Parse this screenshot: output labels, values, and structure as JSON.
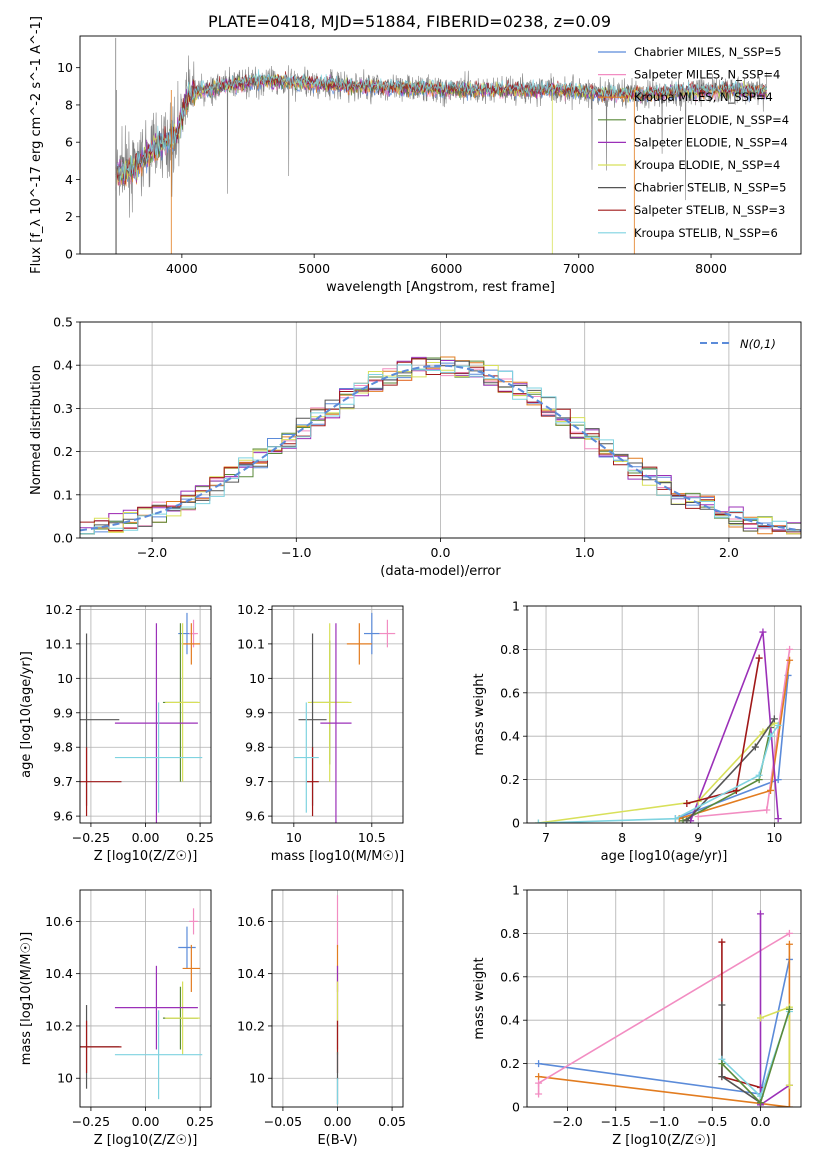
{
  "title": "PLATE=0418, MJD=51884, FIBERID=0238, z=0.09",
  "chart_data": [
    {
      "id": "spectrum",
      "type": "line",
      "xlabel": "wavelength [Angstrom, rest frame]",
      "ylabel": "Flux [f_λ 10^-17 erg cm^-2 s^-1 A^-1]",
      "xlim": [
        3230,
        8680
      ],
      "ylim": [
        0,
        11.7
      ],
      "xticks": [
        4000,
        5000,
        6000,
        7000,
        8000
      ],
      "yticks": [
        0,
        2,
        4,
        6,
        8,
        10
      ],
      "grid": false,
      "legend_position": "top-right",
      "data_series": {
        "name": "data",
        "color": "#808080"
      },
      "legend": [
        {
          "label": "Chabrier MILES, N_SSP=5",
          "color": "#5b8bd9"
        },
        {
          "label": "Salpeter MILES, N_SSP=4",
          "color": "#f28dc2"
        },
        {
          "label": "Kroupa MILES, N_SSP=4",
          "color": "#e27c20"
        },
        {
          "label": "Chabrier ELODIE, N_SSP=4",
          "color": "#5a8a3a"
        },
        {
          "label": "Salpeter ELODIE, N_SSP=4",
          "color": "#9b30b8"
        },
        {
          "label": "Kroupa ELODIE, N_SSP=4",
          "color": "#d8e05a"
        },
        {
          "label": "Chabrier STELIB, N_SSP=5",
          "color": "#555555"
        },
        {
          "label": "Salpeter STELIB, N_SSP=3",
          "color": "#a01818"
        },
        {
          "label": "Kroupa STELIB, N_SSP=6",
          "color": "#7fd3e0"
        }
      ],
      "continuum": {
        "x": [
          3500,
          3650,
          3800,
          3950,
          4050,
          4300,
          4600,
          4900,
          5300,
          5700,
          6100,
          6500,
          6900,
          7200,
          7500,
          7800,
          8100,
          8400
        ],
        "y": [
          4.3,
          4.6,
          5.8,
          6.3,
          8.6,
          9.0,
          9.3,
          9.2,
          9.0,
          8.9,
          8.8,
          8.8,
          8.8,
          8.6,
          8.6,
          8.7,
          8.8,
          8.7
        ]
      }
    },
    {
      "id": "residuals",
      "type": "histogram",
      "xlabel": "(data-model)/error",
      "ylabel": "Normed distribution",
      "xlim": [
        -2.5,
        2.5
      ],
      "ylim": [
        0,
        0.5
      ],
      "xticks": [
        -2,
        -1,
        0,
        1,
        2
      ],
      "yticks": [
        0.0,
        0.1,
        0.2,
        0.3,
        0.4,
        0.5
      ],
      "grid": true,
      "legend_position": "top-right",
      "legend": [
        {
          "label": "N(0,1)",
          "color": "#5b8bd9",
          "style": "dashed"
        }
      ]
    },
    {
      "id": "age-vs-z",
      "type": "scatter",
      "xlabel": "Z [log10(Z/Z☉)]",
      "ylabel": "age [log10(age/yr)]",
      "xlim": [
        -0.3,
        0.3
      ],
      "ylim": [
        9.58,
        10.21
      ],
      "xticks": [
        -0.25,
        0.0,
        0.25
      ],
      "xticklabels": [
        "−0.25",
        "0.00",
        "0.25"
      ],
      "yticks": [
        9.6,
        9.7,
        9.8,
        9.9,
        10.0,
        10.1,
        10.2
      ],
      "grid": true,
      "points": [
        {
          "color": "#5b8bd9",
          "x": 0.19,
          "xerr": 0.04,
          "y": 10.13,
          "yerr": 0.06
        },
        {
          "color": "#f28dc2",
          "x": 0.22,
          "xerr": 0.02,
          "y": 10.13,
          "yerr": 0.04
        },
        {
          "color": "#e27c20",
          "x": 0.21,
          "xerr": 0.04,
          "y": 10.1,
          "yerr": 0.06
        },
        {
          "color": "#5a8a3a",
          "x": 0.16,
          "xerr": 0.08,
          "y": 9.93,
          "yerr": 0.23
        },
        {
          "color": "#d8e05a",
          "x": 0.17,
          "xerr": 0.08,
          "y": 9.93,
          "yerr": 0.23
        },
        {
          "color": "#9b30b8",
          "x": 0.05,
          "xerr": 0.19,
          "y": 9.87,
          "yerr": 0.29
        },
        {
          "color": "#555555",
          "x": -0.27,
          "xerr": 0.15,
          "y": 9.88,
          "yerr": 0.25
        },
        {
          "color": "#a01818",
          "x": -0.27,
          "xerr": 0.16,
          "y": 9.7,
          "yerr": 0.1
        },
        {
          "color": "#7fd3e0",
          "x": 0.06,
          "xerr": 0.2,
          "y": 9.77,
          "yerr": 0.16
        }
      ]
    },
    {
      "id": "age-vs-mass",
      "type": "scatter",
      "xlabel": "mass [log10(M/M☉)]",
      "ylabel": "",
      "xlim": [
        9.86,
        10.7
      ],
      "ylim": [
        9.58,
        10.21
      ],
      "xticks": [
        10.0,
        10.5
      ],
      "yticks": [
        9.6,
        9.7,
        9.8,
        9.9,
        10.0,
        10.1,
        10.2
      ],
      "grid": true,
      "points": [
        {
          "color": "#5b8bd9",
          "x": 10.5,
          "xerr": 0.05,
          "y": 10.13,
          "yerr": 0.06
        },
        {
          "color": "#f28dc2",
          "x": 10.6,
          "xerr": 0.05,
          "y": 10.13,
          "yerr": 0.04
        },
        {
          "color": "#e27c20",
          "x": 10.42,
          "xerr": 0.08,
          "y": 10.1,
          "yerr": 0.06
        },
        {
          "color": "#5a8a3a",
          "x": 10.23,
          "xerr": 0.12,
          "y": 9.93,
          "yerr": 0.18
        },
        {
          "color": "#d8e05a",
          "x": 10.23,
          "xerr": 0.14,
          "y": 9.93,
          "yerr": 0.23
        },
        {
          "color": "#9b30b8",
          "x": 10.27,
          "xerr": 0.1,
          "y": 9.87,
          "yerr": 0.29
        },
        {
          "color": "#555555",
          "x": 10.12,
          "xerr": 0.09,
          "y": 9.88,
          "yerr": 0.25
        },
        {
          "color": "#a01818",
          "x": 10.12,
          "xerr": 0.04,
          "y": 9.7,
          "yerr": 0.1
        },
        {
          "color": "#7fd3e0",
          "x": 10.08,
          "xerr": 0.08,
          "y": 9.77,
          "yerr": 0.16
        }
      ]
    },
    {
      "id": "weight-vs-age",
      "type": "line",
      "xlabel": "age [log10(age/yr)]",
      "ylabel": "mass weight",
      "xlim": [
        6.75,
        10.35
      ],
      "ylim": [
        0,
        1.0
      ],
      "xticks": [
        7,
        8,
        9,
        10
      ],
      "yticks": [
        0.0,
        0.2,
        0.4,
        0.6,
        0.8,
        1.0
      ],
      "grid": true,
      "series": [
        {
          "color": "#5b8bd9",
          "points": [
            [
              8.7,
              0.02
            ],
            [
              10.05,
              0.2
            ],
            [
              10.18,
              0.68
            ]
          ]
        },
        {
          "color": "#f28dc2",
          "points": [
            [
              9.0,
              0.03
            ],
            [
              9.9,
              0.06
            ],
            [
              10.2,
              0.8
            ]
          ]
        },
        {
          "color": "#e27c20",
          "points": [
            [
              8.75,
              0.02
            ],
            [
              9.95,
              0.15
            ],
            [
              10.2,
              0.75
            ]
          ]
        },
        {
          "color": "#5a8a3a",
          "points": [
            [
              8.8,
              0.01
            ],
            [
              9.8,
              0.2
            ],
            [
              9.95,
              0.44
            ]
          ]
        },
        {
          "color": "#9b30b8",
          "points": [
            [
              8.9,
              0.01
            ],
            [
              9.85,
              0.88
            ],
            [
              10.05,
              0.02
            ]
          ]
        },
        {
          "color": "#d8e05a",
          "points": [
            [
              6.9,
              0.0
            ],
            [
              9.0,
              0.1
            ],
            [
              9.85,
              0.42
            ],
            [
              10.0,
              0.46
            ]
          ]
        },
        {
          "color": "#555555",
          "points": [
            [
              8.85,
              0.01
            ],
            [
              9.75,
              0.35
            ],
            [
              10.0,
              0.48
            ]
          ]
        },
        {
          "color": "#a01818",
          "points": [
            [
              8.85,
              0.09
            ],
            [
              9.5,
              0.15
            ],
            [
              9.8,
              0.76
            ]
          ]
        },
        {
          "color": "#7fd3e0",
          "points": [
            [
              6.9,
              0.0
            ],
            [
              8.7,
              0.02
            ],
            [
              9.8,
              0.22
            ],
            [
              9.95,
              0.4
            ],
            [
              10.05,
              0.45
            ]
          ]
        }
      ]
    },
    {
      "id": "mass-vs-z",
      "type": "scatter",
      "xlabel": "Z [log10(Z/Z☉)]",
      "ylabel": "mass [log10(M/M☉)]",
      "xlim": [
        -0.3,
        0.3
      ],
      "ylim": [
        9.89,
        10.72
      ],
      "xticks": [
        -0.25,
        0.0,
        0.25
      ],
      "xticklabels": [
        "−0.25",
        "0.00",
        "0.25"
      ],
      "yticks": [
        10.0,
        10.2,
        10.4,
        10.6
      ],
      "grid": true,
      "points": [
        {
          "color": "#5b8bd9",
          "x": 0.19,
          "xerr": 0.04,
          "y": 10.5,
          "yerr": 0.08
        },
        {
          "color": "#f28dc2",
          "x": 0.22,
          "xerr": 0.02,
          "y": 10.6,
          "yerr": 0.05
        },
        {
          "color": "#e27c20",
          "x": 0.21,
          "xerr": 0.04,
          "y": 10.42,
          "yerr": 0.09
        },
        {
          "color": "#5a8a3a",
          "x": 0.16,
          "xerr": 0.08,
          "y": 10.23,
          "yerr": 0.12
        },
        {
          "color": "#d8e05a",
          "x": 0.17,
          "xerr": 0.08,
          "y": 10.23,
          "yerr": 0.14
        },
        {
          "color": "#9b30b8",
          "x": 0.05,
          "xerr": 0.19,
          "y": 10.27,
          "yerr": 0.16
        },
        {
          "color": "#555555",
          "x": -0.27,
          "xerr": 0.15,
          "y": 10.12,
          "yerr": 0.16
        },
        {
          "color": "#a01818",
          "x": -0.27,
          "xerr": 0.16,
          "y": 10.12,
          "yerr": 0.1
        },
        {
          "color": "#7fd3e0",
          "x": 0.06,
          "xerr": 0.2,
          "y": 10.09,
          "yerr": 0.17
        }
      ]
    },
    {
      "id": "mass-vs-ebv",
      "type": "scatter",
      "xlabel": "E(B-V)",
      "ylabel": "",
      "xlim": [
        -0.06,
        0.06
      ],
      "ylim": [
        9.89,
        10.72
      ],
      "xticks": [
        -0.05,
        0.0,
        0.05
      ],
      "xticklabels": [
        "−0.05",
        "0.00",
        "0.05"
      ],
      "yticks": [
        10.0,
        10.2,
        10.4,
        10.6
      ],
      "grid": true,
      "points": [
        {
          "color": "#f28dc2",
          "x": 0.0,
          "xerr": 0,
          "y": 10.6,
          "yerr": 0.1
        },
        {
          "color": "#e27c20",
          "x": 0.0,
          "xerr": 0,
          "y": 10.42,
          "yerr": 0.09
        },
        {
          "color": "#9b30b8",
          "x": 0.0,
          "xerr": 0,
          "y": 10.27,
          "yerr": 0.16
        },
        {
          "color": "#d8e05a",
          "x": 0.0,
          "xerr": 0,
          "y": 10.23,
          "yerr": 0.14
        },
        {
          "color": "#a01818",
          "x": 0.0,
          "xerr": 0,
          "y": 10.12,
          "yerr": 0.1
        },
        {
          "color": "#555555",
          "x": 0.0,
          "xerr": 0,
          "y": 10.0,
          "yerr": 0.1
        },
        {
          "color": "#7fd3e0",
          "x": 0.0,
          "xerr": 0,
          "y": 9.95,
          "yerr": 0.05
        }
      ]
    },
    {
      "id": "weight-vs-z",
      "type": "line",
      "xlabel": "Z [log10(Z/Z☉)]",
      "ylabel": "mass weight",
      "xlim": [
        -2.42,
        0.42
      ],
      "ylim": [
        0,
        1.0
      ],
      "xticks": [
        -2.0,
        -1.5,
        -1.0,
        -0.5,
        0.0
      ],
      "xticklabels": [
        "−2.0",
        "−1.5",
        "−1.0",
        "−0.5",
        "0.0"
      ],
      "yticks": [
        0.0,
        0.2,
        0.4,
        0.6,
        0.8,
        1.0
      ],
      "grid": true,
      "series": [
        {
          "color": "#5b8bd9",
          "points": [
            [
              -2.3,
              0.2
            ],
            [
              0.0,
              0.06
            ],
            [
              0.3,
              0.68
            ]
          ]
        },
        {
          "color": "#e27c20",
          "points": [
            [
              -2.3,
              0.14
            ],
            [
              0.3,
              0.0
            ],
            [
              0.3,
              0.75
            ]
          ]
        },
        {
          "color": "#f28dc2",
          "points": [
            [
              -2.3,
              0.06
            ],
            [
              -2.3,
              0.11
            ],
            [
              0.3,
              0.8
            ]
          ]
        },
        {
          "color": "#a01818",
          "points": [
            [
              -0.4,
              0.76
            ],
            [
              -0.4,
              0.14
            ],
            [
              0.0,
              0.09
            ]
          ]
        },
        {
          "color": "#555555",
          "points": [
            [
              -0.4,
              0.47
            ],
            [
              -0.4,
              0.14
            ],
            [
              0.0,
              0.02
            ]
          ]
        },
        {
          "color": "#9b30b8",
          "points": [
            [
              0.0,
              0.89
            ],
            [
              0.0,
              0.01
            ],
            [
              0.3,
              0.1
            ]
          ]
        },
        {
          "color": "#d8e05a",
          "points": [
            [
              0.0,
              0.41
            ],
            [
              0.3,
              0.46
            ],
            [
              0.3,
              0.1
            ]
          ]
        },
        {
          "color": "#7fd3e0",
          "points": [
            [
              -0.4,
              0.22
            ],
            [
              0.0,
              0.05
            ],
            [
              0.3,
              0.44
            ]
          ]
        },
        {
          "color": "#5a8a3a",
          "points": [
            [
              -0.4,
              0.2
            ],
            [
              0.0,
              0.02
            ],
            [
              0.3,
              0.45
            ]
          ]
        }
      ]
    }
  ]
}
